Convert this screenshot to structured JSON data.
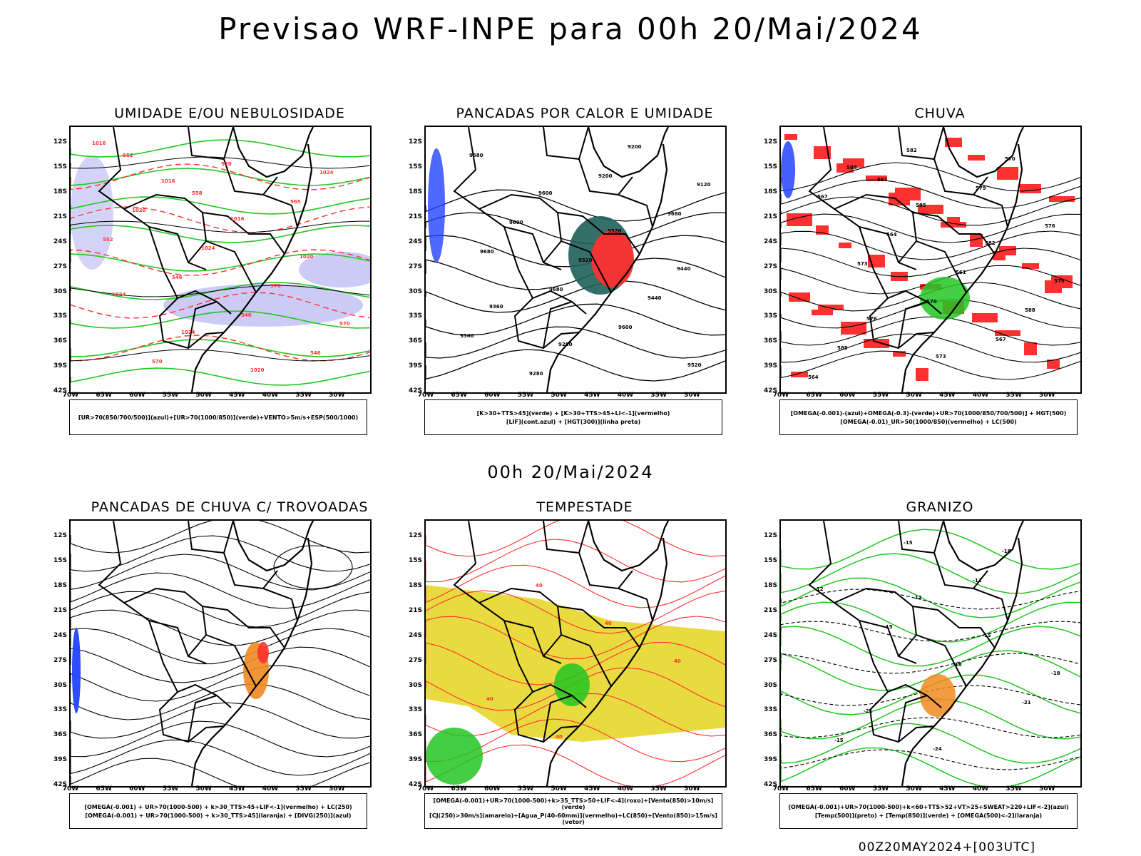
{
  "main_title": "Previsao WRF-INPE  para 00h 20/Mai/2024",
  "mid_title": "00h 20/Mai/2024",
  "footer": "00Z20MAY2024+[003UTC]",
  "lat_labels": [
    "12S",
    "15S",
    "18S",
    "21S",
    "24S",
    "27S",
    "30S",
    "33S",
    "36S",
    "39S",
    "42S"
  ],
  "lon_labels": [
    "70W",
    "65W",
    "60W",
    "55W",
    "50W",
    "45W",
    "40W",
    "35W",
    "30W"
  ],
  "colors": {
    "green": "#22c622",
    "red": "#ff3030",
    "blue": "#2244ff",
    "lavender": "#a8a8f0",
    "yellow": "#e6d62a",
    "orange": "#f08a20",
    "teal": "#1f5f5a"
  },
  "panels": [
    {
      "title": "UMIDADE E/OU NEBULOSIDADE",
      "legend": [
        "[UR>70(850/700/500)](azul)+[UR>70(1000/850)](verde)+VENTO>5m/s+ESP(500/1000)"
      ],
      "contour_labels": [
        "1016",
        "1016",
        "1016",
        "1020",
        "1024",
        "1024",
        "1020",
        "1024",
        "1020",
        "1024",
        "570",
        "570",
        "570",
        "570",
        "565",
        "552",
        "546",
        "540",
        "546",
        "552",
        "558"
      ]
    },
    {
      "title": "PANCADAS POR CALOR E UMIDADE",
      "legend": [
        "[K>30+TTS>45](verde) + [K>30+TTS>45+LI<-1](vermelho)",
        "[LIF](cont.azul) + [HGT(300)](linha preta)"
      ],
      "contour_labels": [
        "9680",
        "9600",
        "9520",
        "9440",
        "9360",
        "9280",
        "9200",
        "9120",
        "9600",
        "9520",
        "9440",
        "9360",
        "9280",
        "9200",
        "9680",
        "9680",
        "9680",
        "9600",
        "9520"
      ]
    },
    {
      "title": "CHUVA",
      "legend": [
        "[OMEGA(-0.001)-(azul)+OMEGA(-0.3)-(verde)+UR>70(1000/850/700/500)] + HGT(500)",
        "[OMEGA(-0.01)_UR>50(1000/850)(vermelho) + LC(500)"
      ],
      "contour_labels": [
        "588",
        "585",
        "582",
        "579",
        "576",
        "573",
        "570",
        "567",
        "564",
        "561",
        "588",
        "585",
        "582",
        "579",
        "576",
        "573",
        "570",
        "567",
        "564",
        "561"
      ]
    },
    {
      "title": "PANCADAS DE CHUVA C/ TROVOADAS",
      "legend": [
        "[OMEGA(-0.001) + UR>70(1000-500) + k>30_TTS>45+LIF<-1](vermelho) + LC(250)",
        "[OMEGA(-0.001) + UR>70(1000-500) + k>30_TTS>45](laranja) + [DIVG(250)](azul)"
      ],
      "contour_labels": []
    },
    {
      "title": "TEMPESTADE",
      "legend": [
        "[OMEGA(-0.001)+UR>70(1000-500)+k>35_TTS>50+LIF<-4](roxo)+[Vento(850)>10m/s](verde)",
        "[CJ(250)>30m/s](amarelo)+[Agua_P(40-60mm)](vermelho)+LC(850)+[Vento(850)>15m/s](vetor)"
      ],
      "contour_labels": [
        "40",
        "40",
        "40",
        "40",
        "40"
      ]
    },
    {
      "title": "GRANIZO",
      "legend": [
        "[OMEGA(-0.001)+UR>70(1000-500)+k<60+TTS>52+VT>25+SWEAT>220+LIF<-2](azul)",
        "[Temp(500)](preto) + [Temp(850)](verde) + [OMEGA(500)<-2](laranja)"
      ],
      "contour_labels": [
        "-12",
        "-15",
        "-18",
        "-21",
        "-24",
        "-18",
        "-12",
        "-15",
        "-18",
        "-21",
        "-15",
        "-15",
        "-12"
      ]
    }
  ]
}
